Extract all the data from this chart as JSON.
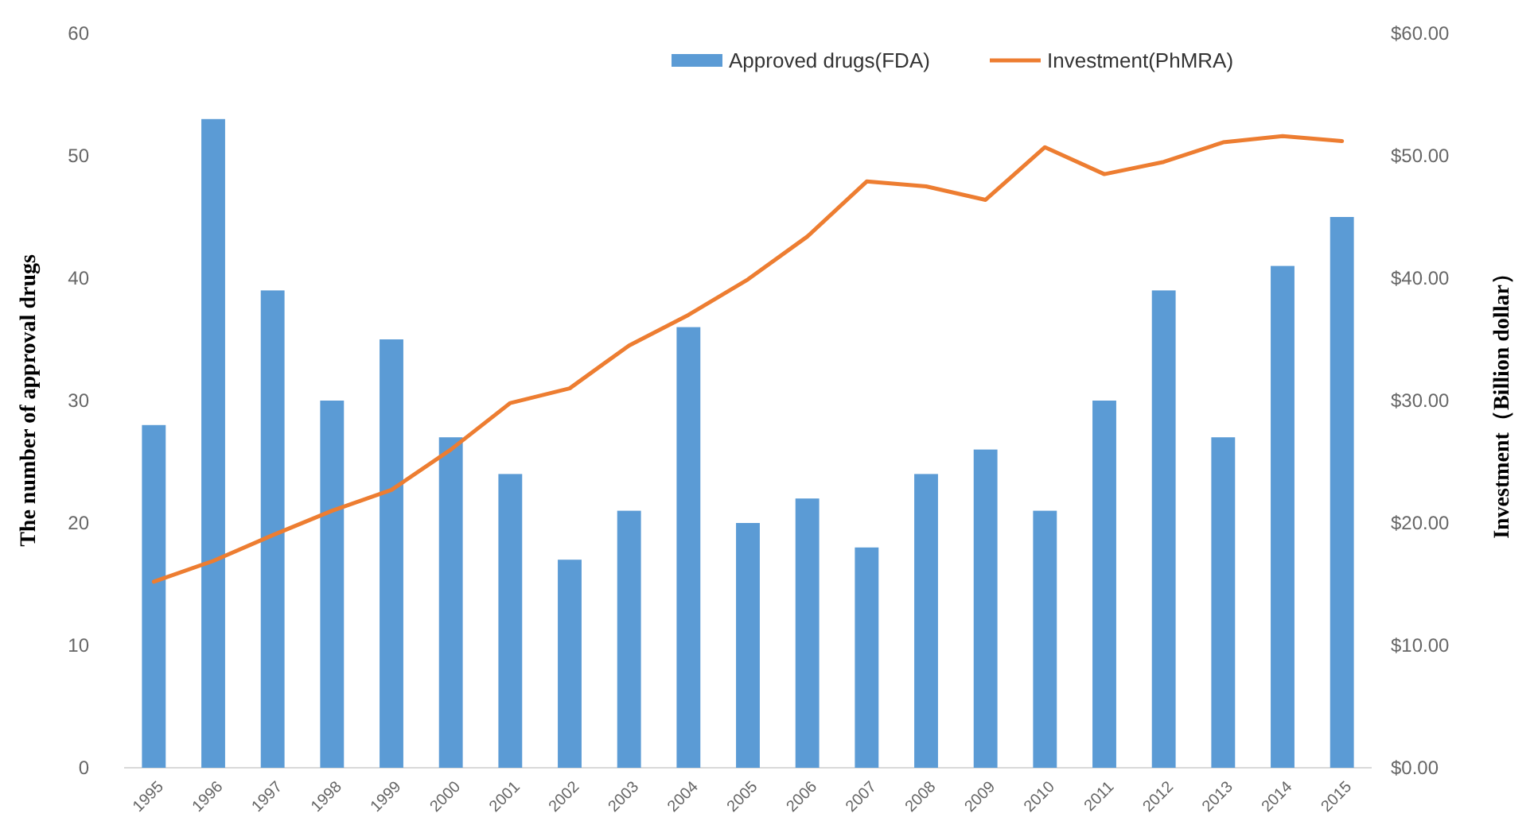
{
  "chart_data": {
    "type": "bar",
    "xlabel": null,
    "ylabel": "The number of approval drugs",
    "y2label": "Investment（Billion dollar）",
    "categories": [
      "1995",
      "1996",
      "1997",
      "1998",
      "1999",
      "2000",
      "2001",
      "2002",
      "2003",
      "2004",
      "2005",
      "2006",
      "2007",
      "2008",
      "2009",
      "2010",
      "2011",
      "2012",
      "2013",
      "2014",
      "2015"
    ],
    "series": [
      {
        "name": "Approved drugs(FDA)",
        "color": "#5b9bd5",
        "values": [
          28,
          53,
          39,
          30,
          35,
          27,
          24,
          17,
          21,
          36,
          20,
          22,
          18,
          24,
          26,
          21,
          30,
          39,
          27,
          41,
          45
        ]
      },
      {
        "name": "Investment(PhMRA)",
        "type": "line",
        "axis": "y2",
        "color": "#ed7d31",
        "values": [
          15.2,
          16.9,
          19.0,
          21.0,
          22.7,
          26.0,
          29.8,
          31.0,
          34.5,
          37.0,
          39.9,
          43.4,
          47.9,
          47.5,
          46.4,
          50.7,
          48.5,
          49.5,
          51.1,
          51.6,
          51.2
        ]
      }
    ],
    "ylim": [
      0,
      60
    ],
    "yticks": [
      0,
      10,
      20,
      30,
      40,
      50,
      60
    ],
    "y2lim": [
      0,
      60
    ],
    "y2ticks": [
      {
        "value": 0,
        "label": "$0.00"
      },
      {
        "value": 10,
        "label": "$10.00"
      },
      {
        "value": 20,
        "label": "$20.00"
      },
      {
        "value": 30,
        "label": "$30.00"
      },
      {
        "value": 40,
        "label": "$40.00"
      },
      {
        "value": 50,
        "label": "$50.00"
      },
      {
        "value": 60,
        "label": "$60.00"
      }
    ],
    "grid": false,
    "legend": "top right",
    "marker": "none",
    "line_style": "solid"
  }
}
